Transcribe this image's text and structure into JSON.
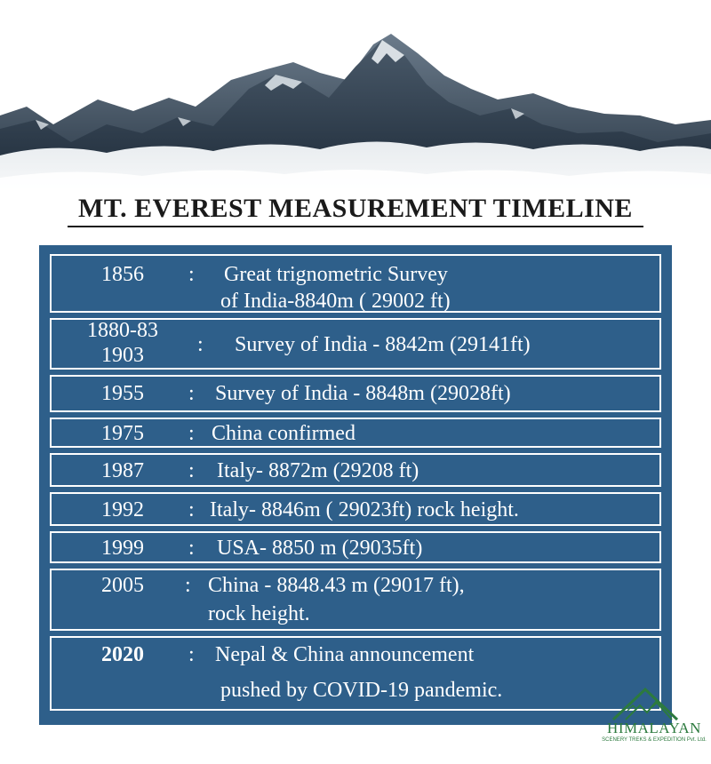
{
  "title": "MT. EVEREST MEASUREMENT TIMELINE",
  "colors": {
    "panel": "#2e5f8a",
    "text": "#ffffff",
    "logo": "#2c7a3e"
  },
  "rows": [
    {
      "year": "1856",
      "lines": [
        "Great trignometric Survey",
        "of India-8840m ( 29002 ft)"
      ]
    },
    {
      "year": "1880-83\n1903",
      "year_lines": [
        "1880-83",
        "1903"
      ],
      "lines": [
        "Survey of India - 8842m (29141ft)"
      ]
    },
    {
      "year": "1955",
      "lines": [
        "Survey of India - 8848m (29028ft)"
      ]
    },
    {
      "year": "1975",
      "lines": [
        "China confirmed"
      ]
    },
    {
      "year": "1987",
      "lines": [
        "Italy- 8872m (29208 ft)"
      ]
    },
    {
      "year": "1992",
      "lines": [
        "Italy- 8846m ( 29023ft) rock height."
      ]
    },
    {
      "year": "1999",
      "lines": [
        "USA- 8850 m (29035ft)"
      ]
    },
    {
      "year": "2005",
      "lines": [
        "China - 8848.43 m (29017 ft),",
        "rock height."
      ]
    },
    {
      "year": "2020",
      "lines": [
        "Nepal & China announcement",
        "pushed by   COVID-19 pandemic."
      ]
    }
  ],
  "colon": ":",
  "logo": {
    "name": "HIMALAYAN",
    "tagline": "SCENERY TREKS & EXPEDITION Pvt. Ltd.",
    "icon": "mountain-logo-icon"
  }
}
